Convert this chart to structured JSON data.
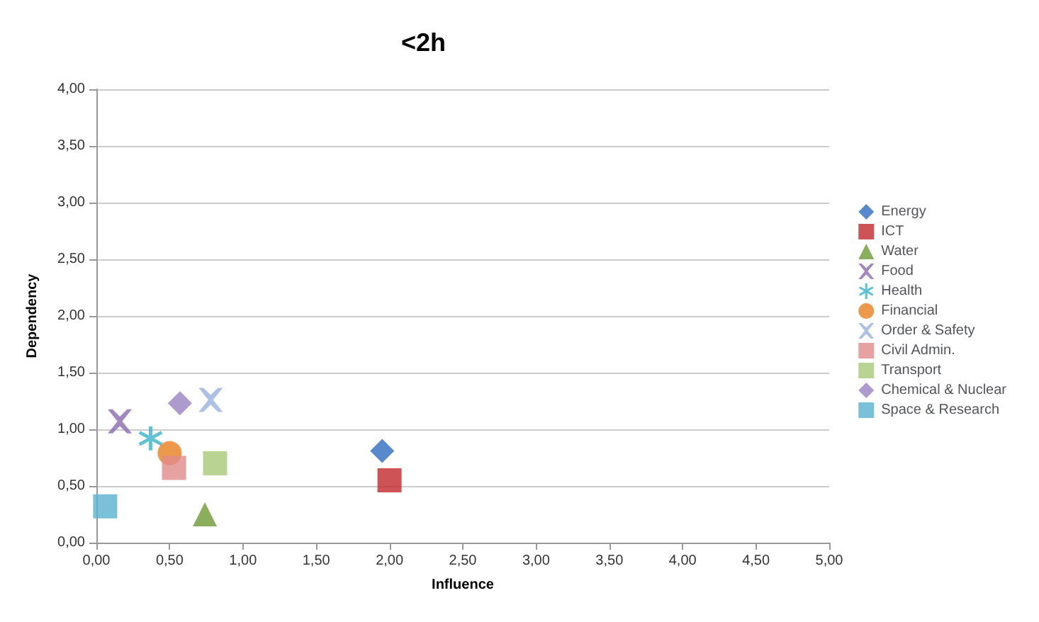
{
  "chart_data": {
    "type": "scatter",
    "title": "<2h",
    "xlabel": "Influence",
    "ylabel": "Dependency",
    "xlim": [
      0,
      5
    ],
    "ylim": [
      0,
      4
    ],
    "xticks": [
      {
        "value": 0,
        "label": "0,00"
      },
      {
        "value": 0.5,
        "label": "0,50"
      },
      {
        "value": 1,
        "label": "1,00"
      },
      {
        "value": 1.5,
        "label": "1,50"
      },
      {
        "value": 2,
        "label": "2,00"
      },
      {
        "value": 2.5,
        "label": "2,50"
      },
      {
        "value": 3,
        "label": "3,00"
      },
      {
        "value": 3.5,
        "label": "3,50"
      },
      {
        "value": 4,
        "label": "4,00"
      },
      {
        "value": 4.5,
        "label": "4,50"
      },
      {
        "value": 5,
        "label": "5,00"
      }
    ],
    "yticks": [
      {
        "value": 0,
        "label": "0,00"
      },
      {
        "value": 0.5,
        "label": "0,50"
      },
      {
        "value": 1,
        "label": "1,00"
      },
      {
        "value": 1.5,
        "label": "1,50"
      },
      {
        "value": 2,
        "label": "2,00"
      },
      {
        "value": 2.5,
        "label": "2,50"
      },
      {
        "value": 3,
        "label": "3,00"
      },
      {
        "value": 3.5,
        "label": "3,50"
      },
      {
        "value": 4,
        "label": "4,00"
      }
    ],
    "grid": "y",
    "legend": "right",
    "series": [
      {
        "name": "Energy",
        "color": "#2e6bbf",
        "marker": "diamond",
        "x": [
          1.95
        ],
        "values": [
          0.81
        ]
      },
      {
        "name": "ICT",
        "color": "#c0282c",
        "marker": "square",
        "x": [
          2.0
        ],
        "values": [
          0.55
        ]
      },
      {
        "name": "Water",
        "color": "#6e9a34",
        "marker": "triangle",
        "x": [
          0.74
        ],
        "values": [
          0.25
        ]
      },
      {
        "name": "Food",
        "color": "#8a6bb0",
        "marker": "cross",
        "x": [
          0.16
        ],
        "values": [
          1.07
        ]
      },
      {
        "name": "Health",
        "color": "#3ab3c8",
        "marker": "star",
        "x": [
          0.37
        ],
        "values": [
          0.92
        ]
      },
      {
        "name": "Financial",
        "color": "#e8801e",
        "marker": "circle",
        "x": [
          0.5
        ],
        "values": [
          0.79
        ]
      },
      {
        "name": "Order & Safety",
        "color": "#9ab0dc",
        "marker": "cross",
        "x": [
          0.78
        ],
        "values": [
          1.26
        ]
      },
      {
        "name": "Civil Admin.",
        "color": "#e08a8a",
        "marker": "square",
        "x": [
          0.53
        ],
        "values": [
          0.66
        ]
      },
      {
        "name": "Transport",
        "color": "#a8c878",
        "marker": "square",
        "x": [
          0.81
        ],
        "values": [
          0.7
        ]
      },
      {
        "name": "Chemical & Nuclear",
        "color": "#9a82c0",
        "marker": "diamond",
        "x": [
          0.57
        ],
        "values": [
          1.23
        ]
      },
      {
        "name": "Space & Research",
        "color": "#5ab0d0",
        "marker": "square",
        "x": [
          0.06
        ],
        "values": [
          0.32
        ]
      }
    ]
  }
}
